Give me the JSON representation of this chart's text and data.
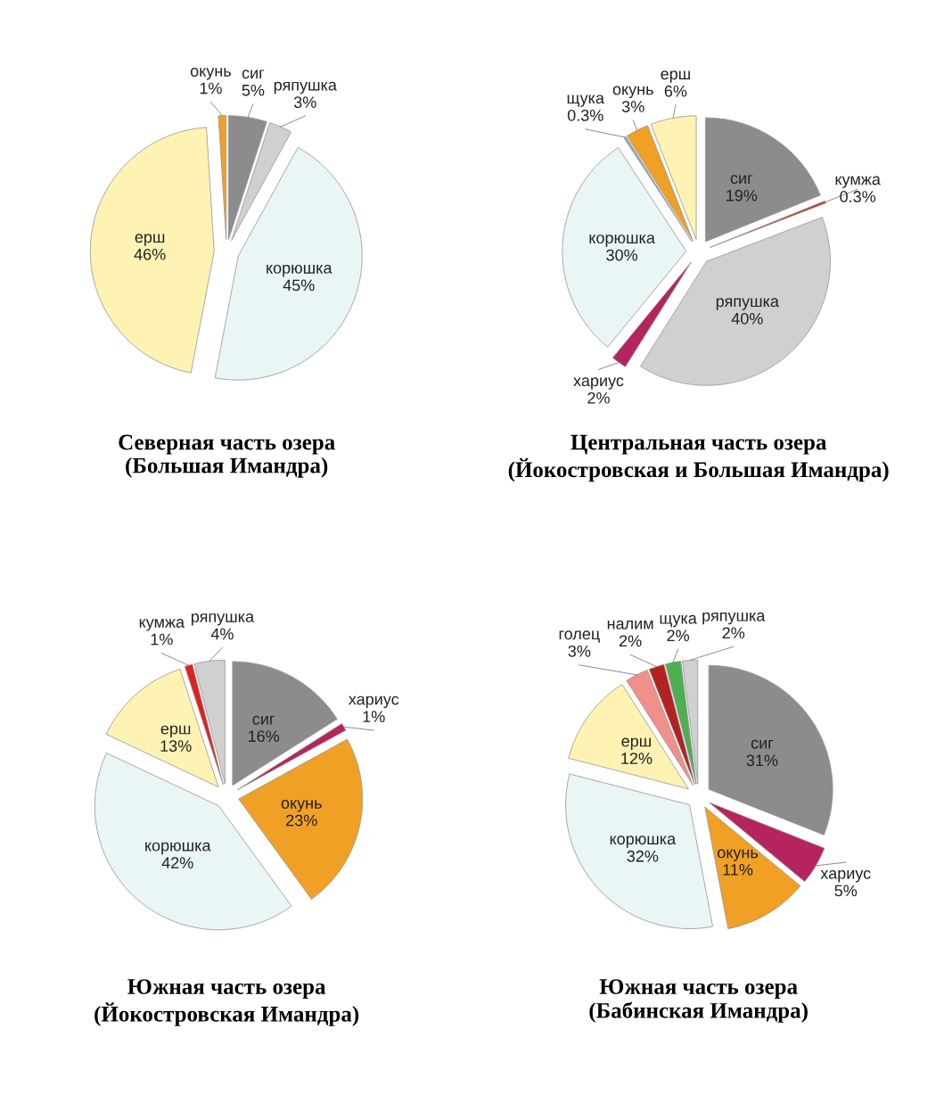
{
  "chart_data": [
    {
      "type": "pie",
      "title": "Северная часть озера\n(Большая Имандра)",
      "categories": [
        "сиг",
        "ряпушка",
        "корюшка",
        "ерш",
        "окунь"
      ],
      "values": [
        5,
        3,
        45,
        46,
        1
      ],
      "value_labels": [
        "5%",
        "3%",
        "45%",
        "46%",
        "1%"
      ],
      "colors": [
        "#8c8c8c",
        "#d0d0d0",
        "#eaf5f5",
        "#fff3b3",
        "#f0a024"
      ]
    },
    {
      "type": "pie",
      "title": "Центральная часть озера\n(Йокостровская и Большая Имандра)",
      "categories": [
        "сиг",
        "кумжа",
        "ряпушка",
        "хариус",
        "корюшка",
        "щука",
        "окунь",
        "ерш"
      ],
      "values": [
        19,
        0.3,
        40,
        2,
        30,
        0.3,
        3,
        6
      ],
      "value_labels": [
        "19%",
        "0.3%",
        "40%",
        "2%",
        "30%",
        "0.3%",
        "3%",
        "6%"
      ],
      "colors": [
        "#8c8c8c",
        "#c0392b",
        "#d0d0d0",
        "#b5245e",
        "#eaf5f5",
        "#8fa8c0",
        "#f0a024",
        "#fff3b3"
      ]
    },
    {
      "type": "pie",
      "title": "Южная часть озера\n(Йокостровская Имандра)",
      "categories": [
        "сиг",
        "хариус",
        "окунь",
        "корюшка",
        "ерш",
        "кумжа",
        "ряпушка"
      ],
      "values": [
        16,
        1,
        23,
        42,
        13,
        1,
        4
      ],
      "value_labels": [
        "16%",
        "1%",
        "23%",
        "42%",
        "13%",
        "1%",
        "4%"
      ],
      "colors": [
        "#8c8c8c",
        "#b5245e",
        "#f0a024",
        "#eaf5f5",
        "#fff3b3",
        "#e02020",
        "#d0d0d0"
      ]
    },
    {
      "type": "pie",
      "title": "Южная часть озера\n(Бабинская Имандра)",
      "categories": [
        "сиг",
        "хариус",
        "окунь",
        "корюшка",
        "ерш",
        "голец",
        "налим",
        "щука",
        "ряпушка"
      ],
      "values": [
        31,
        5,
        11,
        32,
        12,
        3,
        2,
        2,
        2
      ],
      "value_labels": [
        "31%",
        "5%",
        "11%",
        "32%",
        "12%",
        "3%",
        "2%",
        "2%",
        "2%"
      ],
      "colors": [
        "#8c8c8c",
        "#b5245e",
        "#f0a024",
        "#eaf5f5",
        "#fff3b3",
        "#f0908a",
        "#b22222",
        "#4caf50",
        "#d0d0d0"
      ]
    }
  ]
}
